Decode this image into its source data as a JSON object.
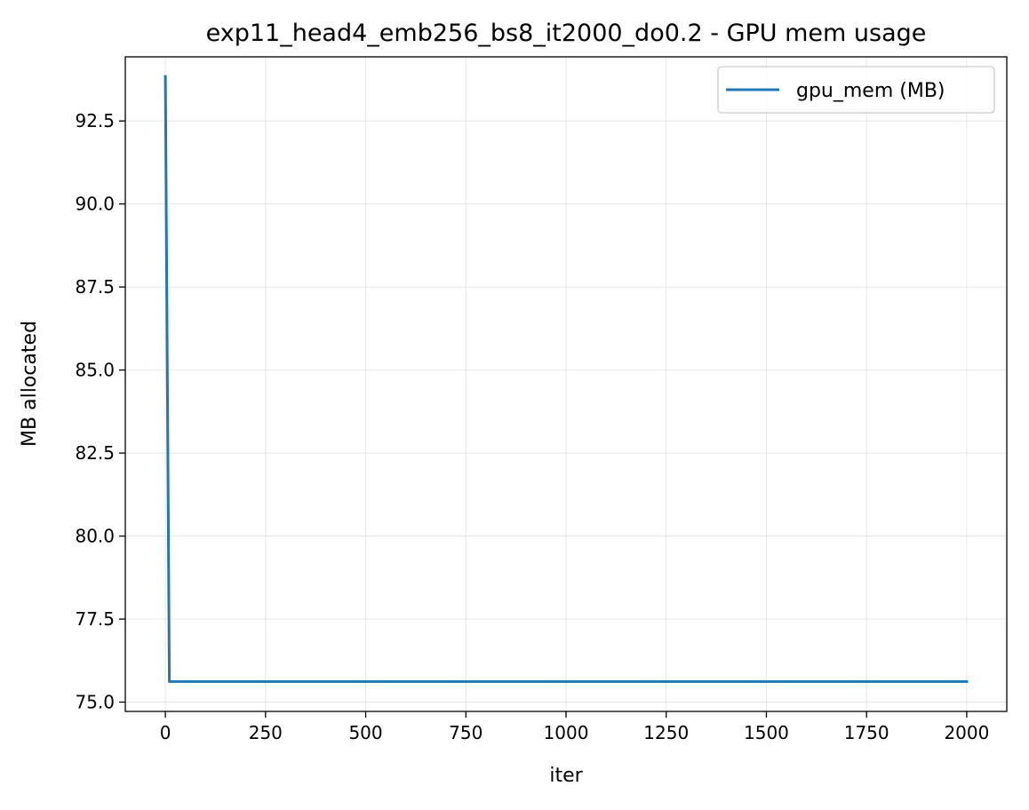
{
  "chart_data": {
    "type": "line",
    "title": "exp11_head4_emb256_bs8_it2000_do0.2 - GPU mem usage",
    "xlabel": "iter",
    "ylabel": "MB allocated",
    "xlim": [
      -100,
      2100
    ],
    "ylim": [
      74.72,
      94.43
    ],
    "xticks": [
      0,
      250,
      500,
      750,
      1000,
      1250,
      1500,
      1750,
      2000
    ],
    "xtick_labels": [
      "0",
      "250",
      "500",
      "750",
      "1000",
      "1250",
      "1500",
      "1750",
      "2000"
    ],
    "yticks": [
      75.0,
      77.5,
      80.0,
      82.5,
      85.0,
      87.5,
      90.0,
      92.5
    ],
    "ytick_labels": [
      "75.0",
      "77.5",
      "80.0",
      "82.5",
      "85.0",
      "87.5",
      "90.0",
      "92.5"
    ],
    "grid": true,
    "legend_position": "upper right",
    "series": [
      {
        "name": "gpu_mem (MB)",
        "color": "#1f77b4",
        "x": [
          0,
          10,
          2000
        ],
        "y": [
          93.84,
          75.62,
          75.62
        ]
      }
    ]
  }
}
